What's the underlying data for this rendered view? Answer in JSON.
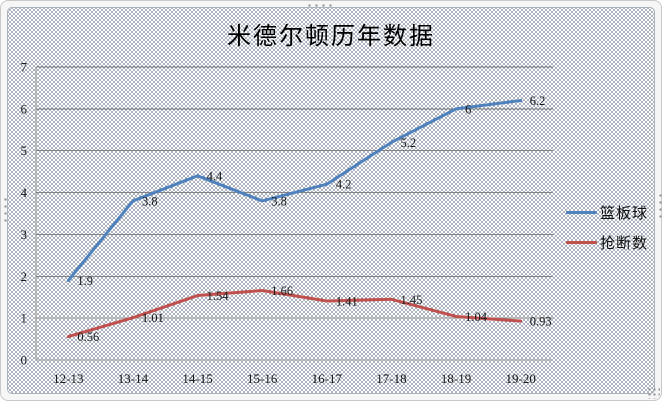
{
  "chart_data": {
    "type": "line",
    "title": "米德尔顿历年数据",
    "categories": [
      "12-13",
      "13-14",
      "14-15",
      "15-16",
      "16-17",
      "17-18",
      "18-19",
      "19-20"
    ],
    "series": [
      {
        "name": "篮板球",
        "color": "#4f81bd",
        "values": [
          1.9,
          3.8,
          4.4,
          3.8,
          4.2,
          5.2,
          6,
          6.2
        ]
      },
      {
        "name": "抢断数",
        "color": "#c0504d",
        "values": [
          0.56,
          1.01,
          1.54,
          1.66,
          1.41,
          1.45,
          1.04,
          0.93
        ]
      }
    ],
    "xlabel": "",
    "ylabel": "",
    "ylim": [
      0,
      7
    ],
    "ytick_step": 1,
    "grid": true,
    "data_labels": true,
    "legend_position": "right",
    "gridline_color": "#848484",
    "text_color": "#1a1a1a"
  }
}
